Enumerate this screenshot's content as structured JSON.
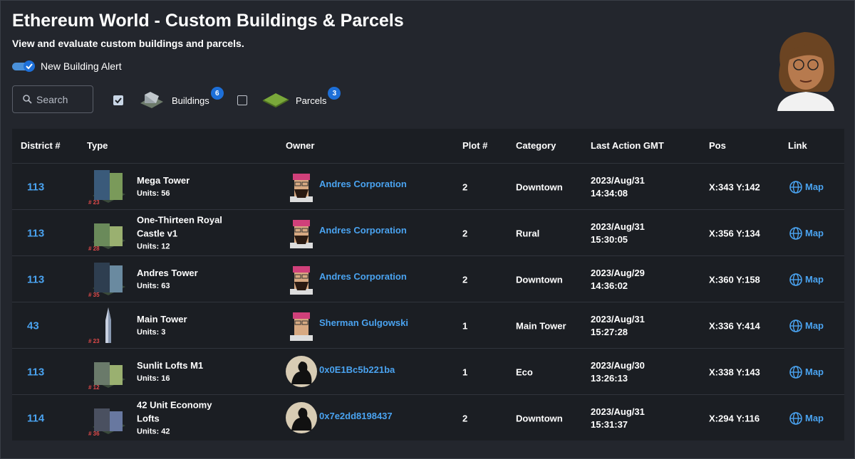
{
  "header": {
    "title": "Ethereum World - Custom Buildings & Parcels",
    "subtitle": "View and evaluate custom buildings and parcels."
  },
  "toggle": {
    "label": "New Building Alert",
    "checked": true
  },
  "search": {
    "placeholder": "Search"
  },
  "filters": [
    {
      "label": "Buildings",
      "count": 6,
      "checked": true
    },
    {
      "label": "Parcels",
      "count": 3,
      "checked": false
    }
  ],
  "table": {
    "columns": [
      "District #",
      "Type",
      "Owner",
      "Plot #",
      "Category",
      "Last Action GMT",
      "Pos",
      "Link"
    ],
    "rows": [
      {
        "district": 113,
        "name": "Mega Tower",
        "units": "Units: 56",
        "badge": "# 23",
        "owner": "Andres Corporation",
        "plot": 2,
        "category": "Downtown",
        "date": "2023/Aug/31",
        "time": "14:34:08",
        "pos": "X:343 Y:142",
        "link": "Map"
      },
      {
        "district": 113,
        "name": "One-Thirteen Royal Castle v1",
        "units": "Units: 12",
        "badge": "# 28",
        "owner": "Andres Corporation",
        "plot": 2,
        "category": "Rural",
        "date": "2023/Aug/31",
        "time": "15:30:05",
        "pos": "X:356 Y:134",
        "link": "Map"
      },
      {
        "district": 113,
        "name": "Andres Tower",
        "units": "Units: 63",
        "badge": "# 35",
        "owner": "Andres Corporation",
        "plot": 2,
        "category": "Downtown",
        "date": "2023/Aug/29",
        "time": "14:36:02",
        "pos": "X:360 Y:158",
        "link": "Map"
      },
      {
        "district": 43,
        "name": "Main Tower",
        "units": "Units: 3",
        "badge": "# 23",
        "owner": "Sherman Gulgowski",
        "plot": 1,
        "category": "Main Tower",
        "date": "2023/Aug/31",
        "time": "15:27:28",
        "pos": "X:336 Y:414",
        "link": "Map"
      },
      {
        "district": 113,
        "name": "Sunlit Lofts M1",
        "units": "Units: 16",
        "badge": "# 12",
        "owner": "0x0E1Bc5b221ba",
        "plot": 1,
        "category": "Eco",
        "date": "2023/Aug/30",
        "time": "13:26:13",
        "pos": "X:338 Y:143",
        "link": "Map"
      },
      {
        "district": 114,
        "name": "42 Unit Economy Lofts",
        "units": "Units: 42",
        "badge": "# 36",
        "owner": "0x7e2dd8198437",
        "plot": 2,
        "category": "Downtown",
        "date": "2023/Aug/31",
        "time": "15:31:37",
        "pos": "X:294 Y:116",
        "link": "Map"
      }
    ]
  }
}
